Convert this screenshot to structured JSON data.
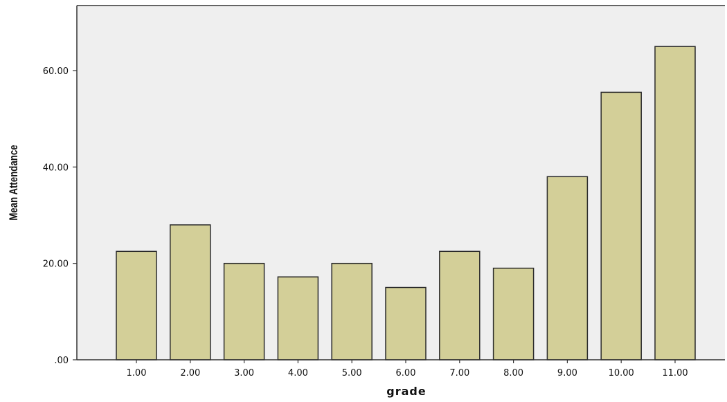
{
  "chart_data": {
    "type": "bar",
    "title": "",
    "xlabel": "grade",
    "ylabel": "Mean Attendance",
    "categories": [
      "1.00",
      "2.00",
      "3.00",
      "4.00",
      "5.00",
      "6.00",
      "7.00",
      "8.00",
      "9.00",
      "10.00",
      "11.00"
    ],
    "values": [
      22.5,
      28.0,
      20.0,
      17.2,
      20.0,
      15.0,
      22.5,
      19.0,
      38.0,
      55.5,
      65.0
    ],
    "ylim": [
      0,
      73.5
    ],
    "yticks": [
      0,
      20,
      40,
      60
    ],
    "ytick_labels": [
      ".00",
      "20.00",
      "40.00",
      "60.00"
    ],
    "grid": false,
    "legend": "none",
    "colors": {
      "plot_background": "#efefef",
      "bar_fill": "#d3cf98",
      "bar_stroke": "#2a2a2a",
      "axis": "#333333"
    }
  }
}
